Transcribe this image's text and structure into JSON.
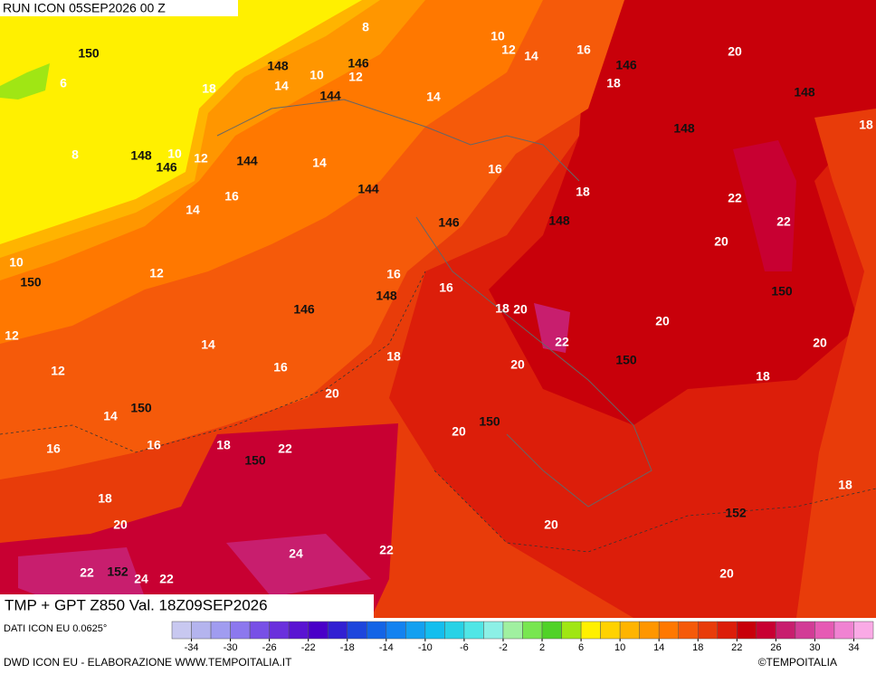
{
  "header": {
    "run": "RUN ICON 05SEP2026 00 Z",
    "title": "TMP + GPT Z850 Val. 18Z09SEP2026"
  },
  "footer": {
    "source": "DATI ICON EU 0.0625°",
    "credit": "DWD ICON EU - ELABORAZIONE WWW.TEMPOITALIA.IT",
    "copyright": "©TEMPOITALIA"
  },
  "colorbar": {
    "range": [
      -36,
      36
    ],
    "ticks": [
      -34,
      -30,
      -26,
      -22,
      -18,
      -14,
      -10,
      -6,
      -2,
      2,
      6,
      10,
      14,
      18,
      22,
      26,
      30,
      34
    ],
    "colors": [
      "#c8c8f0",
      "#b4b4ee",
      "#a09cf0",
      "#8c78ee",
      "#7850e6",
      "#6a30dc",
      "#5a14d2",
      "#4a00c8",
      "#3220d2",
      "#1e46dc",
      "#1464e6",
      "#1482f0",
      "#14a0f0",
      "#14beee",
      "#28d2e6",
      "#50e6e6",
      "#8cf0e6",
      "#a0f0a0",
      "#78e650",
      "#50d228",
      "#a0e614",
      "#fff000",
      "#ffd200",
      "#ffb400",
      "#ff9600",
      "#ff7800",
      "#f55a0a",
      "#e83c0a",
      "#dc1e0a",
      "#c8000a",
      "#c80032",
      "#c81e6e",
      "#d23c96",
      "#e65ab4",
      "#f082d2",
      "#faaae6"
    ]
  },
  "map": {
    "temperature_labels": [
      6,
      8,
      10,
      12,
      14,
      16,
      20,
      18,
      14,
      10,
      12,
      14,
      18,
      18,
      8,
      10,
      12,
      14,
      16,
      16,
      14,
      18,
      22,
      22,
      20,
      10,
      12,
      16,
      16,
      18,
      20,
      20,
      12,
      14,
      22,
      20,
      18,
      12,
      16,
      20,
      18,
      20,
      14,
      20,
      16,
      16,
      18,
      22,
      18,
      18,
      20,
      20,
      24,
      22,
      22,
      24,
      22,
      20
    ],
    "geopotential_labels": [
      150,
      148,
      146,
      144,
      146,
      148,
      148,
      148,
      146,
      144,
      144,
      146,
      148,
      150,
      148,
      146,
      150,
      150,
      150,
      150,
      150,
      152,
      152
    ]
  }
}
